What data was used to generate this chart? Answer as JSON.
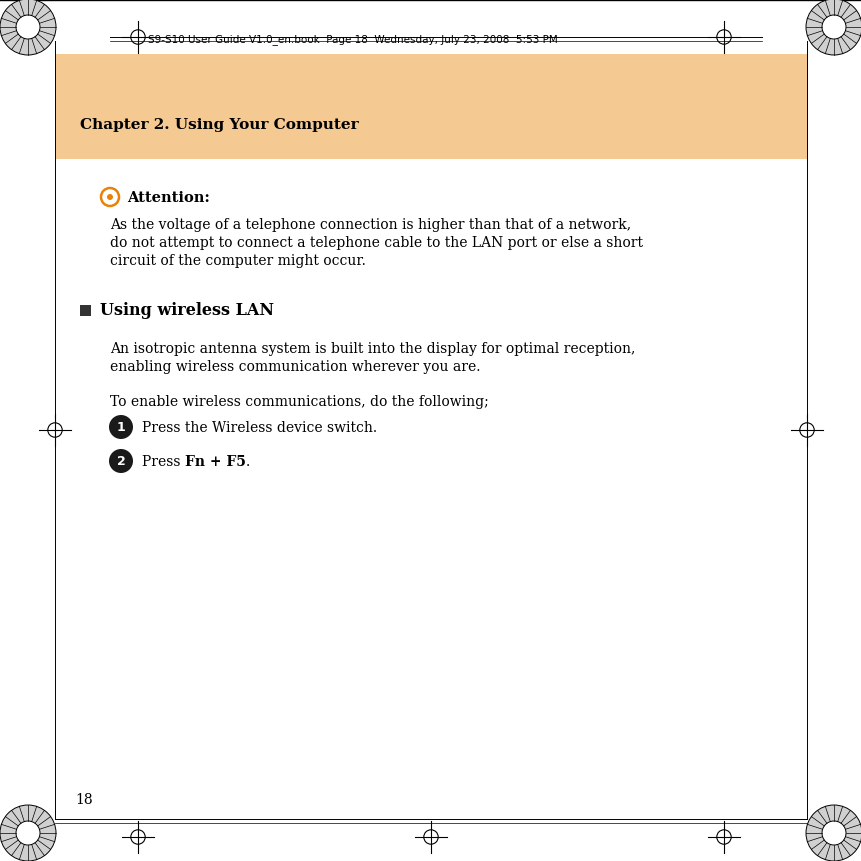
{
  "page_bg": "#ffffff",
  "header_bar_color": "#f5c992",
  "chapter_title": "Chapter 2. Using Your Computer",
  "header_text": "S9-S10 User Guide V1.0_en.book  Page 18  Wednesday, July 23, 2008  5:53 PM",
  "attention_label": "◎  Attention:",
  "attention_body_line1": "As the voltage of a telephone connection is higher than that of a network,",
  "attention_body_line2": "do not attempt to connect a telephone cable to the LAN port or else a short",
  "attention_body_line3": "circuit of the computer might occur.",
  "section_title": "Using wireless LAN",
  "section_body_line1": "An isotropic antenna system is built into the display for optimal reception,",
  "section_body_line2": "enabling wireless communication wherever you are.",
  "section_intro": "To enable wireless communications, do the following;",
  "step1_text": "Press the Wireless device switch.",
  "step2_pre": "Press ",
  "step2_bold": "Fn + F5",
  "step2_post": ".",
  "page_number": "18",
  "text_color": "#000000",
  "attention_icon_color": "#e8820a",
  "step_icon_color": "#1a1a1a"
}
